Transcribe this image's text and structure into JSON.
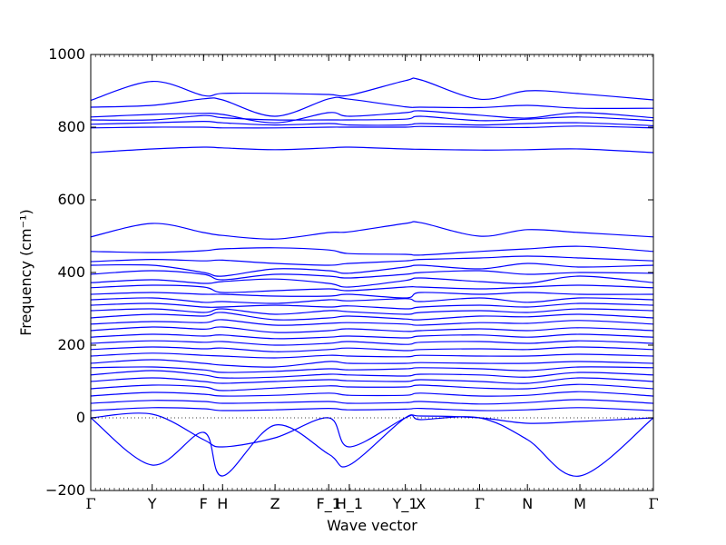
{
  "chart_data": {
    "type": "line",
    "xlabel": "Wave vector",
    "ylabel": "Frequency (cm⁻¹)",
    "ylim": [
      -200,
      1000
    ],
    "yticks": [
      -200,
      0,
      200,
      400,
      600,
      800,
      1000
    ],
    "zero_line": 0,
    "grid": false,
    "line_color": "#0000ff",
    "path_points": [
      {
        "label": "Γ",
        "x": 0
      },
      {
        "label": "Y",
        "x": 0.158
      },
      {
        "label": "F",
        "x": 0.29
      },
      {
        "label": "H",
        "x": 0.339
      },
      {
        "label": "Z",
        "x": 0.474
      },
      {
        "label": "F_1",
        "x": 0.612
      },
      {
        "label": "H_1",
        "x": 0.665
      },
      {
        "label": "Y_1",
        "x": 0.809
      },
      {
        "label": "X",
        "x": 0.849
      },
      {
        "label": "Γ",
        "x": 1.0
      },
      {
        "label": "N",
        "x": 1.123
      },
      {
        "label": "M",
        "x": 1.258
      },
      {
        "label": "Γ",
        "x": 1.447
      }
    ],
    "series": [
      {
        "values": [
          874,
          926,
          887,
          893,
          893,
          890,
          888,
          928,
          930,
          877,
          900,
          892,
          875
        ]
      },
      {
        "values": [
          855,
          860,
          878,
          875,
          830,
          878,
          877,
          856,
          855,
          854,
          860,
          852,
          852
        ]
      },
      {
        "values": [
          828,
          835,
          838,
          835,
          812,
          840,
          830,
          840,
          845,
          833,
          825,
          840,
          826
        ]
      },
      {
        "values": [
          820,
          820,
          832,
          826,
          820,
          820,
          820,
          822,
          830,
          818,
          822,
          828,
          818
        ]
      },
      {
        "values": [
          808,
          812,
          816,
          812,
          806,
          810,
          806,
          806,
          810,
          806,
          810,
          812,
          804
        ]
      },
      {
        "values": [
          798,
          800,
          800,
          798,
          798,
          800,
          800,
          800,
          802,
          800,
          799,
          803,
          798
        ]
      },
      {
        "values": [
          730,
          740,
          745,
          743,
          738,
          743,
          745,
          740,
          739,
          737,
          738,
          740,
          730
        ]
      },
      {
        "values": [
          498,
          535,
          510,
          502,
          492,
          510,
          512,
          535,
          537,
          500,
          518,
          510,
          498
        ]
      },
      {
        "values": [
          458,
          455,
          460,
          465,
          468,
          462,
          452,
          450,
          448,
          458,
          465,
          472,
          458
        ]
      },
      {
        "values": [
          430,
          436,
          432,
          434,
          425,
          420,
          425,
          432,
          436,
          440,
          445,
          440,
          432
        ]
      },
      {
        "values": [
          420,
          420,
          400,
          390,
          410,
          405,
          398,
          415,
          420,
          410,
          425,
          415,
          420
        ]
      },
      {
        "values": [
          395,
          405,
          395,
          380,
          395,
          390,
          385,
          395,
          400,
          405,
          395,
          400,
          398
        ]
      },
      {
        "values": [
          372,
          380,
          370,
          375,
          382,
          370,
          360,
          378,
          385,
          375,
          370,
          390,
          372
        ]
      },
      {
        "values": [
          358,
          365,
          360,
          345,
          350,
          355,
          350,
          360,
          360,
          355,
          360,
          365,
          358
        ]
      },
      {
        "values": [
          340,
          345,
          340,
          340,
          335,
          335,
          340,
          330,
          345,
          340,
          345,
          340,
          340
        ]
      },
      {
        "values": [
          325,
          330,
          318,
          320,
          315,
          325,
          322,
          328,
          320,
          330,
          318,
          330,
          325
        ]
      },
      {
        "values": [
          310,
          315,
          305,
          305,
          310,
          305,
          308,
          300,
          305,
          310,
          305,
          315,
          310
        ]
      },
      {
        "values": [
          295,
          300,
          290,
          300,
          285,
          295,
          292,
          285,
          290,
          295,
          290,
          300,
          295
        ]
      },
      {
        "values": [
          275,
          285,
          280,
          290,
          270,
          275,
          280,
          272,
          270,
          280,
          278,
          285,
          275
        ]
      },
      {
        "values": [
          258,
          265,
          262,
          270,
          255,
          260,
          262,
          258,
          255,
          262,
          260,
          268,
          258
        ]
      },
      {
        "values": [
          240,
          250,
          244,
          250,
          235,
          240,
          245,
          238,
          240,
          245,
          240,
          248,
          240
        ]
      },
      {
        "values": [
          222,
          230,
          225,
          228,
          218,
          222,
          225,
          220,
          225,
          228,
          222,
          230,
          222
        ]
      },
      {
        "values": [
          205,
          212,
          208,
          210,
          200,
          205,
          210,
          202,
          208,
          210,
          205,
          212,
          205
        ]
      },
      {
        "values": [
          188,
          195,
          190,
          192,
          182,
          188,
          192,
          185,
          188,
          190,
          188,
          195,
          188
        ]
      },
      {
        "values": [
          170,
          178,
          172,
          170,
          165,
          172,
          170,
          168,
          172,
          170,
          170,
          175,
          170
        ]
      },
      {
        "values": [
          150,
          160,
          150,
          145,
          140,
          155,
          150,
          150,
          152,
          150,
          150,
          155,
          150
        ]
      },
      {
        "values": [
          138,
          140,
          132,
          125,
          128,
          135,
          132,
          135,
          138,
          135,
          130,
          140,
          138
        ]
      },
      {
        "values": [
          118,
          130,
          118,
          110,
          112,
          120,
          118,
          115,
          120,
          118,
          112,
          125,
          118
        ]
      },
      {
        "values": [
          100,
          110,
          100,
          95,
          100,
          105,
          102,
          100,
          105,
          100,
          95,
          110,
          100
        ]
      },
      {
        "values": [
          80,
          90,
          85,
          75,
          82,
          88,
          85,
          85,
          90,
          82,
          80,
          92,
          80
        ]
      },
      {
        "values": [
          60,
          70,
          65,
          60,
          62,
          68,
          62,
          62,
          68,
          60,
          62,
          72,
          60
        ]
      },
      {
        "values": [
          40,
          48,
          45,
          40,
          42,
          45,
          40,
          42,
          45,
          38,
          42,
          50,
          40
        ]
      },
      {
        "values": [
          20,
          28,
          25,
          20,
          22,
          26,
          22,
          24,
          26,
          20,
          22,
          28,
          20
        ]
      },
      {
        "values": [
          0,
          10,
          -60,
          -80,
          -55,
          0,
          -80,
          0,
          5,
          0,
          -15,
          -10,
          0
        ]
      },
      {
        "values": [
          0,
          -130,
          -40,
          -160,
          -20,
          -100,
          -130,
          0,
          -5,
          0,
          -60,
          -160,
          0
        ]
      }
    ]
  }
}
